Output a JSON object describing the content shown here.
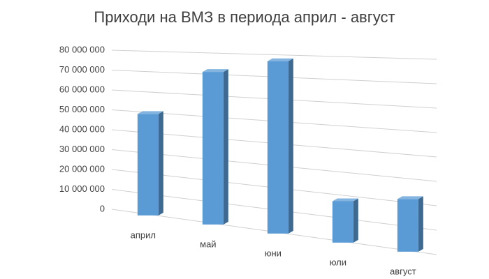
{
  "chart_data": {
    "type": "bar3d",
    "title": "Приходи на ВМЗ в периода април - август",
    "categories": [
      "април",
      "май",
      "юни",
      "юли",
      "август"
    ],
    "values": [
      50000000,
      72000000,
      78000000,
      18000000,
      22000000
    ],
    "color": "#5b9bd5",
    "ylim": [
      0,
      80000000
    ],
    "yticks": [
      0,
      {
        "value": 10000000,
        "label": "10 000 000"
      },
      {
        "value": 20000000,
        "label": "20 000 000"
      },
      {
        "value": 30000000,
        "label": "30 000 000"
      },
      {
        "value": 40000000,
        "label": "40 000 000"
      },
      {
        "value": 50000000,
        "label": "50 000 000"
      },
      {
        "value": 60000000,
        "label": "60 000 000"
      },
      {
        "value": 70000000,
        "label": "70 000 000"
      },
      {
        "value": 80000000,
        "label": "80 000 000"
      }
    ],
    "grid": true
  }
}
